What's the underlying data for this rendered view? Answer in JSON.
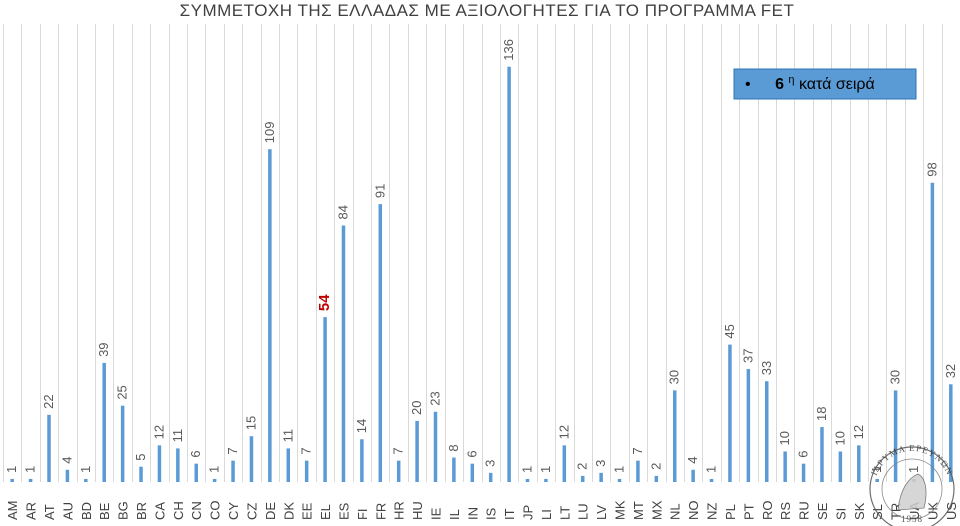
{
  "chart_data": {
    "type": "bar",
    "title": "ΣΥΜΜΕΤΟΧΗ ΤΗΣ ΕΛΛΑΔΑΣ ΜΕ ΑΞΙΟΛΟΓΗΤΕΣ ΓΙΑ ΤΟ ΠΡΟΓΡΑΜΜΑ FET",
    "categories": [
      "AM",
      "AR",
      "AT",
      "AU",
      "BD",
      "BE",
      "BG",
      "BR",
      "CA",
      "CH",
      "CN",
      "CO",
      "CY",
      "CZ",
      "DE",
      "DK",
      "EE",
      "EL",
      "ES",
      "FI",
      "FR",
      "HR",
      "HU",
      "IE",
      "IL",
      "IN",
      "IS",
      "IT",
      "JP",
      "LI",
      "LT",
      "LU",
      "LV",
      "MK",
      "MT",
      "MX",
      "NL",
      "NO",
      "NZ",
      "PL",
      "PT",
      "RO",
      "RS",
      "RU",
      "SE",
      "SI",
      "SK",
      "SL",
      "TR",
      "UA",
      "UK",
      "US"
    ],
    "values": [
      1,
      1,
      22,
      4,
      1,
      39,
      25,
      5,
      12,
      11,
      6,
      1,
      7,
      15,
      109,
      11,
      7,
      54,
      84,
      14,
      91,
      7,
      20,
      23,
      8,
      6,
      3,
      136,
      1,
      1,
      12,
      2,
      3,
      1,
      7,
      2,
      30,
      4,
      1,
      45,
      37,
      33,
      10,
      6,
      18,
      10,
      12,
      1,
      30,
      1,
      98,
      32
    ],
    "highlight": {
      "category": "EL",
      "value_label": "54",
      "color": "#c00000"
    },
    "bar_color": "#5b9bd5",
    "ylim": [
      0,
      150
    ],
    "grid": "vertical",
    "legend": "top-right",
    "xlabel": "",
    "ylabel": ""
  },
  "callout": {
    "bullet": "•",
    "rank_number": "6",
    "rank_superscript": "η",
    "rank_text": " κατά σειρά",
    "fill_color": "#5b9bd5"
  },
  "seal": {
    "text": "ΙΔΡΥΜΑ ΕΡΕΥΝΩΝ",
    "year": "1958"
  }
}
